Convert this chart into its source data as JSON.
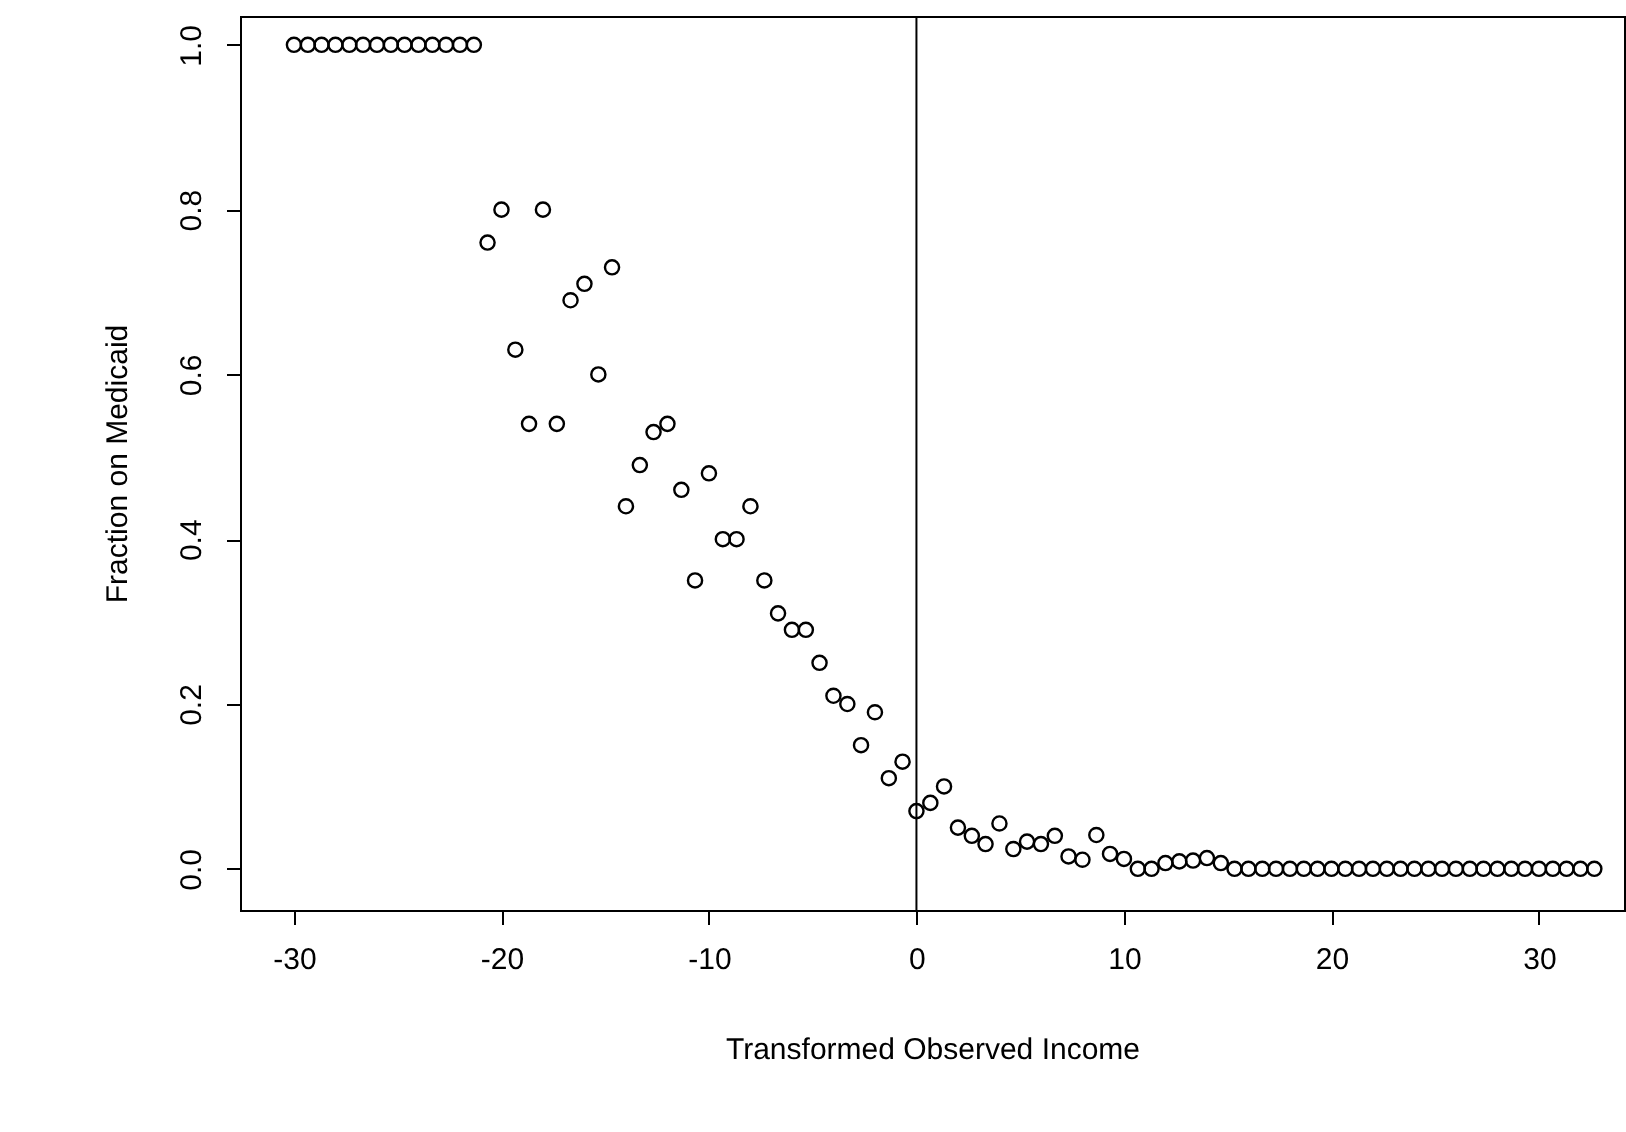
{
  "chart_data": {
    "type": "scatter",
    "xlabel": "Transformed Observed Income",
    "ylabel": "Fraction on Medicaid",
    "x": [
      -30,
      -29.33,
      -28.67,
      -28,
      -27.33,
      -26.67,
      -26,
      -25.33,
      -24.67,
      -24,
      -23.33,
      -22.67,
      -22,
      -21.33,
      -20.67,
      -20,
      -19.33,
      -18.67,
      -18,
      -17.33,
      -16.67,
      -16,
      -15.33,
      -14.67,
      -14,
      -13.33,
      -12.67,
      -12,
      -11.33,
      -10.67,
      -10,
      -9.33,
      -8.67,
      -8,
      -7.33,
      -6.67,
      -6,
      -5.33,
      -4.67,
      -4,
      -3.33,
      -2.67,
      -2,
      -1.33,
      -0.67,
      0,
      0.67,
      1.33,
      2,
      2.67,
      3.33,
      4,
      4.67,
      5.33,
      6,
      6.67,
      7.33,
      8,
      8.67,
      9.33,
      10,
      10.67,
      11.33,
      12,
      12.67,
      13.33,
      14,
      14.67,
      15.33,
      16,
      16.67,
      17.33,
      18,
      18.67,
      19.33,
      20,
      20.67,
      21.33,
      22,
      22.67,
      23.33,
      24,
      24.67,
      25.33,
      26,
      26.67,
      27.33,
      28,
      28.67,
      29.33,
      30,
      30.67,
      31.33,
      32,
      32.67
    ],
    "series": [
      {
        "color": "#000000",
        "values": [
          1,
          1,
          1,
          1,
          1,
          1,
          1,
          1,
          1,
          1,
          1,
          1,
          1,
          1,
          0.76,
          0.8,
          0.63,
          0.54,
          0.8,
          0.54,
          0.69,
          0.71,
          0.6,
          0.73,
          0.44,
          0.49,
          0.53,
          0.54,
          0.46,
          0.35,
          0.48,
          0.4,
          0.4,
          0.44,
          0.35,
          0.31,
          0.29,
          0.29,
          0.25,
          0.21,
          0.2,
          0.15,
          0.19,
          0.11,
          0.13,
          0.07,
          0.08,
          0.1,
          0.05,
          0.04,
          0.03,
          0.055,
          0.024,
          0.033,
          0.03,
          0.04,
          0.015,
          0.011,
          0.041,
          0.018,
          0.012,
          0,
          0,
          0.007,
          0.009,
          0.01,
          0.013,
          0.007,
          0,
          0,
          0,
          0,
          0,
          0,
          0,
          0,
          0,
          0,
          0,
          0,
          0,
          0,
          0,
          0,
          0,
          0,
          0,
          0,
          0,
          0,
          0,
          0,
          0,
          0,
          0
        ]
      }
    ],
    "xlim": [
      -32.6,
      34.1
    ],
    "ylim": [
      -0.05,
      1.035
    ],
    "xticks": [
      -30,
      -20,
      -10,
      0,
      10,
      20,
      30
    ],
    "yticks": [
      {
        "value": 0,
        "label": "0.0"
      },
      {
        "value": 0.2,
        "label": "0.2"
      },
      {
        "value": 0.4,
        "label": "0.4"
      },
      {
        "value": 0.6,
        "label": "0.6"
      },
      {
        "value": 0.8,
        "label": "0.8"
      },
      {
        "value": 1,
        "label": "1.0"
      }
    ],
    "ref_lines": [
      {
        "axis": "x",
        "value": 0,
        "color": "#000000"
      }
    ],
    "marker": "circle",
    "grid": false
  }
}
